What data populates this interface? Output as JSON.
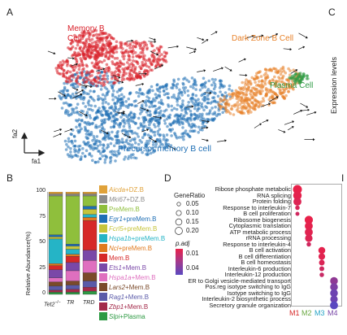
{
  "panels": {
    "a": "A",
    "b": "B",
    "c": "C",
    "d": "D",
    "i": "I"
  },
  "panel_a": {
    "clusters": [
      {
        "label": "Memory B Cell",
        "color": "#d9202a"
      },
      {
        "label": "Dark Zone B Cell",
        "color": "#e8822a"
      },
      {
        "label": "Plasma Cell",
        "color": "#2e9a44"
      },
      {
        "label": "Precursor memory B cell",
        "color": "#1f6fb5"
      }
    ],
    "axis_x": "fa1",
    "axis_y": "fa2"
  },
  "panel_c": {
    "ylabel": "Expression levels"
  },
  "chart_data": [
    {
      "type": "bar",
      "stacked": true,
      "ylabel": "Relative Abundance(%)",
      "ylim": [
        0,
        100
      ],
      "yticks": [
        "100",
        "75",
        "50",
        "25",
        "0"
      ],
      "categories": [
        "Tet2-/-",
        "TR",
        "TRD"
      ],
      "category_labels": [
        "Tet2",
        "−/−",
        "TR",
        "TRD"
      ],
      "series": [
        {
          "name": "Aicda+DZ.B",
          "italic": "Aicda",
          "rest": "+DZ.B",
          "color": "#e0a23a",
          "values": [
            2,
            2,
            2
          ]
        },
        {
          "name": "Mki67+DZ.B",
          "italic": "Mki67",
          "rest": "+DZ.B",
          "color": "#8c8c8c",
          "values": [
            2,
            2,
            2
          ]
        },
        {
          "name": "PreMem.B",
          "italic": "",
          "rest": "PreMem.B",
          "color": "#8fbf3c",
          "values": [
            38,
            47,
            10
          ]
        },
        {
          "name": "Egr1+preMem.B",
          "italic": "Egr1",
          "rest": "+preMem.B",
          "color": "#1f6fb5",
          "values": [
            2,
            2,
            3
          ]
        },
        {
          "name": "Fcrl5+preMem.B",
          "italic": "Fcrl5",
          "rest": "+preMem.B",
          "color": "#c6c43b",
          "values": [
            2,
            3,
            5
          ]
        },
        {
          "name": "Hspa1b+preMem.B",
          "italic": "Hspa1b",
          "rest": "+preMem.B",
          "color": "#25b4c6",
          "values": [
            24,
            5,
            3
          ]
        },
        {
          "name": "Ncl+preMem.B",
          "italic": "Ncl",
          "rest": "+preMem.B",
          "color": "#e07a1f",
          "values": [
            2,
            2,
            3
          ]
        },
        {
          "name": "Mem.B",
          "italic": "",
          "rest": "Mem.B",
          "color": "#d62828",
          "values": [
            4,
            6,
            29
          ]
        },
        {
          "name": "Ets1+Mem.B",
          "italic": "Ets1",
          "rest": "+Mem.B",
          "color": "#7a48a8",
          "values": [
            8,
            8,
            10
          ]
        },
        {
          "name": "Hspa1a+Mem.B",
          "italic": "Hspa1a",
          "rest": "+Mem.B",
          "color": "#df6fbf",
          "values": [
            4,
            10,
            12
          ]
        },
        {
          "name": "Lars2+Mem.B",
          "italic": "Lars2",
          "rest": "+Mem.B",
          "color": "#7a4a2a",
          "values": [
            4,
            4,
            8
          ]
        },
        {
          "name": "Rag1+Mem.B",
          "italic": "Rag1",
          "rest": "+Mem.B",
          "color": "#5a5aa8",
          "values": [
            4,
            4,
            6
          ]
        },
        {
          "name": "Zbp1+Mem.B",
          "italic": "Zbp1",
          "rest": "+Mem.B",
          "color": "#a32a4a",
          "values": [
            2,
            3,
            4
          ]
        },
        {
          "name": "Slpi+Plasma",
          "italic": "Slpi",
          "rest": "+Plasma",
          "color": "#2e9a44",
          "values": [
            2,
            2,
            3
          ]
        }
      ]
    },
    {
      "type": "scatter",
      "subtype": "dotplot",
      "legend_size_title": "GeneRatio",
      "legend_size_values": [
        "0.05",
        "0.10",
        "0.15",
        "0.20"
      ],
      "legend_color_title": "p.adj",
      "legend_color_ticks": [
        "0.01",
        "0.04"
      ],
      "x": [
        "M1",
        "M2",
        "M3",
        "M4"
      ],
      "x_colors": [
        "#d62828",
        "#6aa842",
        "#25a4c6",
        "#7a48a8"
      ],
      "terms": [
        "Ribose phosphate metabolic",
        "RNA splicing",
        "Protein folding",
        "Response to interleukin-7",
        "B cell proliferation",
        "Ribosome biogenesis",
        "Cytoplasmic translation",
        "ATP metabolic process",
        "rRNA processing",
        "Response to interleukin-4",
        "B cell activation",
        "B cell differentiation",
        "B cell homeostasis",
        "Interleukin-6 production",
        "Interleukin-12 production",
        "ER to Golgi vesicle-mediated transport",
        "Pos.reg isotype switching to IgG",
        "Isotype switching to IgG",
        "Interleukin-2 biosynthetic process",
        "Secretory granule organization"
      ],
      "points": [
        {
          "term": 0,
          "module": "M1",
          "gene_ratio": 0.2,
          "p_adj": 0.005
        },
        {
          "term": 1,
          "module": "M1",
          "gene_ratio": 0.18,
          "p_adj": 0.006
        },
        {
          "term": 2,
          "module": "M1",
          "gene_ratio": 0.16,
          "p_adj": 0.008
        },
        {
          "term": 3,
          "module": "M1",
          "gene_ratio": 0.05,
          "p_adj": 0.01
        },
        {
          "term": 4,
          "module": "M1",
          "gene_ratio": 0.04,
          "p_adj": 0.012
        },
        {
          "term": 5,
          "module": "M2",
          "gene_ratio": 0.17,
          "p_adj": 0.005
        },
        {
          "term": 6,
          "module": "M2",
          "gene_ratio": 0.16,
          "p_adj": 0.006
        },
        {
          "term": 7,
          "module": "M2",
          "gene_ratio": 0.16,
          "p_adj": 0.007
        },
        {
          "term": 8,
          "module": "M2",
          "gene_ratio": 0.14,
          "p_adj": 0.008
        },
        {
          "term": 9,
          "module": "M2",
          "gene_ratio": 0.05,
          "p_adj": 0.012
        },
        {
          "term": 10,
          "module": "M3",
          "gene_ratio": 0.12,
          "p_adj": 0.006
        },
        {
          "term": 11,
          "module": "M3",
          "gene_ratio": 0.11,
          "p_adj": 0.007
        },
        {
          "term": 12,
          "module": "M3",
          "gene_ratio": 0.08,
          "p_adj": 0.009
        },
        {
          "term": 13,
          "module": "M3",
          "gene_ratio": 0.06,
          "p_adj": 0.012
        },
        {
          "term": 14,
          "module": "M3",
          "gene_ratio": 0.05,
          "p_adj": 0.014
        },
        {
          "term": 15,
          "module": "M4",
          "gene_ratio": 0.15,
          "p_adj": 0.03
        },
        {
          "term": 16,
          "module": "M4",
          "gene_ratio": 0.15,
          "p_adj": 0.035
        },
        {
          "term": 17,
          "module": "M4",
          "gene_ratio": 0.15,
          "p_adj": 0.04
        },
        {
          "term": 18,
          "module": "M4",
          "gene_ratio": 0.14,
          "p_adj": 0.04
        },
        {
          "term": 19,
          "module": "M4",
          "gene_ratio": 0.16,
          "p_adj": 0.045
        }
      ]
    }
  ]
}
